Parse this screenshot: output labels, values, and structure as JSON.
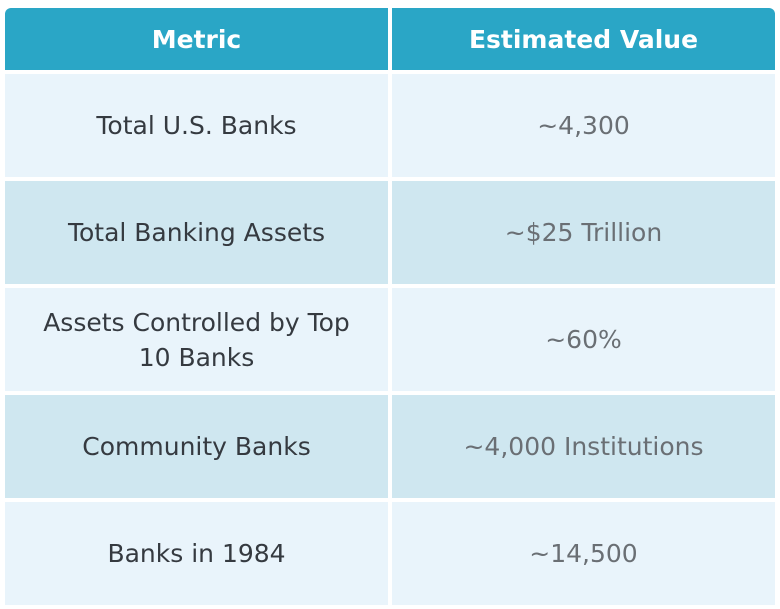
{
  "table": {
    "headers": [
      "Metric",
      "Estimated Value"
    ],
    "rows": [
      {
        "metric": "Total U.S. Banks",
        "value": "~4,300"
      },
      {
        "metric": "Total Banking Assets",
        "value": "~$25 Trillion"
      },
      {
        "metric": "Assets Controlled by Top 10 Banks",
        "value": "~60%"
      },
      {
        "metric": "Community Banks",
        "value": "~4,000 Institutions"
      },
      {
        "metric": "Banks in 1984",
        "value": "~14,500"
      }
    ]
  },
  "colors": {
    "header_bg": "#2aa6c6",
    "row_light": "#e9f4fb",
    "row_dark": "#cfe7f0"
  }
}
